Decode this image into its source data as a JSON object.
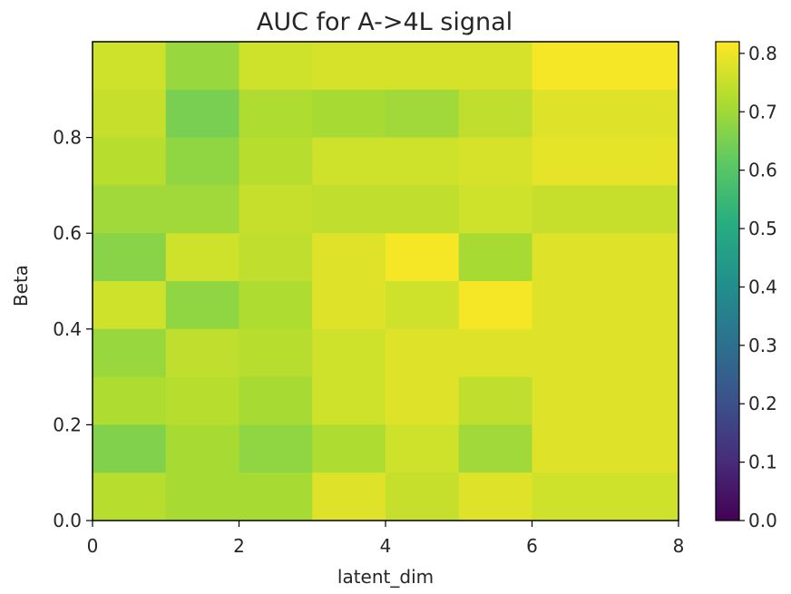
{
  "chart_data": {
    "type": "heatmap",
    "title": "AUC for A->4L signal",
    "xlabel": "latent_dim",
    "ylabel": "Beta",
    "xlim": [
      0,
      8
    ],
    "ylim": [
      0,
      1
    ],
    "x_ticks": [
      "0",
      "2",
      "4",
      "6",
      "8"
    ],
    "y_ticks": [
      "0.0",
      "0.2",
      "0.4",
      "0.6",
      "0.8"
    ],
    "colorbar": {
      "colormap": "viridis",
      "range": [
        0.0,
        0.82
      ],
      "ticks": [
        "0.0",
        "0.1",
        "0.2",
        "0.3",
        "0.4",
        "0.5",
        "0.6",
        "0.7",
        "0.8"
      ]
    },
    "x_edges": [
      0,
      1,
      2,
      3,
      4,
      5,
      6,
      8
    ],
    "y_edges": [
      0,
      0.1,
      0.2,
      0.3,
      0.4,
      0.5,
      0.6,
      0.7,
      0.8,
      0.9,
      1.0
    ],
    "values_top_to_bottom": [
      [
        0.76,
        0.69,
        0.76,
        0.77,
        0.77,
        0.77,
        0.81
      ],
      [
        0.75,
        0.65,
        0.72,
        0.71,
        0.7,
        0.74,
        0.78
      ],
      [
        0.73,
        0.68,
        0.73,
        0.76,
        0.76,
        0.77,
        0.79
      ],
      [
        0.7,
        0.7,
        0.75,
        0.74,
        0.74,
        0.76,
        0.75
      ],
      [
        0.67,
        0.76,
        0.74,
        0.78,
        0.81,
        0.71,
        0.78
      ],
      [
        0.76,
        0.68,
        0.72,
        0.78,
        0.76,
        0.81,
        0.78
      ],
      [
        0.69,
        0.74,
        0.73,
        0.76,
        0.78,
        0.78,
        0.78
      ],
      [
        0.72,
        0.73,
        0.71,
        0.76,
        0.78,
        0.74,
        0.78
      ],
      [
        0.66,
        0.71,
        0.68,
        0.72,
        0.76,
        0.7,
        0.78
      ],
      [
        0.73,
        0.71,
        0.71,
        0.78,
        0.75,
        0.78,
        0.76
      ]
    ]
  }
}
